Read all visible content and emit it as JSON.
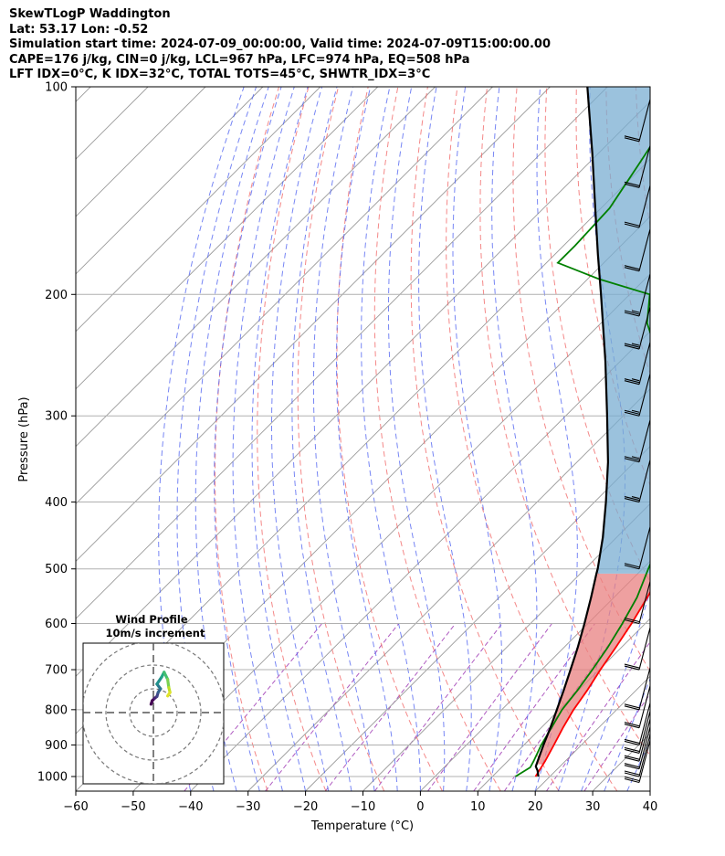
{
  "header": {
    "line1": "SkewTLogP Waddington",
    "line2": "Lat: 53.17   Lon: -0.52",
    "line3": "Simulation start time: 2024-07-09_00:00:00, Valid time: 2024-07-09T15:00:00.00",
    "line4": "CAPE=176 j/kg, CIN=0 j/kg, LCL=967 hPa, LFC=974 hPa, EQ=508 hPa",
    "line5": "LFT IDX=0°C, K IDX=32°C, TOTAL TOTS=45°C, SHWTR_IDX=3°C"
  },
  "chart_data": {
    "type": "skewt-logp",
    "xlabel": "Temperature (°C)",
    "ylabel": "Pressure (hPa)",
    "xlim": [
      -60,
      40
    ],
    "ylim": [
      1050,
      100
    ],
    "x_ticks": [
      "−60",
      "−50",
      "−40",
      "−30",
      "−20",
      "−10",
      "0",
      "10",
      "20",
      "30",
      "40"
    ],
    "x_tick_values": [
      -60,
      -50,
      -40,
      -30,
      -20,
      -10,
      0,
      10,
      20,
      30,
      40
    ],
    "y_ticks": [
      "100",
      "200",
      "300",
      "400",
      "500",
      "600",
      "700",
      "800",
      "900",
      "1000"
    ],
    "y_tick_values": [
      100,
      200,
      300,
      400,
      500,
      600,
      700,
      800,
      900,
      1000
    ],
    "grid": true,
    "colors": {
      "temperature": "#ff0000",
      "dewpoint": "#008000",
      "parcel": "#000000",
      "cape_fill": "#e88080",
      "cin_fill": "#7aaed2",
      "dry_adiabat": "#f06060",
      "moist_adiabat": "#4a5ef0",
      "mixing_ratio": "#9a30b0",
      "isotherm": "#9a9a9a"
    },
    "series": [
      {
        "name": "",
        "role": "temperature",
        "points": [
          {
            "p": 1000,
            "t": 17.5
          },
          {
            "p": 950,
            "t": 16.5
          },
          {
            "p": 900,
            "t": 15.2
          },
          {
            "p": 850,
            "t": 13.8
          },
          {
            "p": 800,
            "t": 12.5
          },
          {
            "p": 750,
            "t": 11.5
          },
          {
            "p": 700,
            "t": 10.2
          },
          {
            "p": 650,
            "t": 9.0
          },
          {
            "p": 600,
            "t": 7.6
          },
          {
            "p": 550,
            "t": 5.8
          },
          {
            "p": 500,
            "t": 3.6
          },
          {
            "p": 450,
            "t": 0.8
          },
          {
            "p": 400,
            "t": -2.8
          },
          {
            "p": 350,
            "t": -7.6
          },
          {
            "p": 300,
            "t": -13.6
          },
          {
            "p": 270,
            "t": -21.0
          },
          {
            "p": 250,
            "t": -27.0
          },
          {
            "p": 220,
            "t": -36.2
          },
          {
            "p": 210,
            "t": -38.0
          },
          {
            "p": 200,
            "t": -37.5
          },
          {
            "p": 190,
            "t": -35.5
          },
          {
            "p": 180,
            "t": -34.5
          },
          {
            "p": 170,
            "t": -35.5
          },
          {
            "p": 160,
            "t": -37.0
          },
          {
            "p": 150,
            "t": -40.0
          },
          {
            "p": 140,
            "t": -44.0
          },
          {
            "p": 130,
            "t": -49.0
          },
          {
            "p": 120,
            "t": -56.0
          },
          {
            "p": 110,
            "t": -60.5
          },
          {
            "p": 100,
            "t": -62.0
          }
        ]
      },
      {
        "name": "",
        "role": "dewpoint",
        "points": [
          {
            "p": 1000,
            "t": 14.0
          },
          {
            "p": 970,
            "t": 15.0
          },
          {
            "p": 950,
            "t": 14.5
          },
          {
            "p": 900,
            "t": 13.0
          },
          {
            "p": 850,
            "t": 11.8
          },
          {
            "p": 800,
            "t": 10.5
          },
          {
            "p": 750,
            "t": 9.8
          },
          {
            "p": 700,
            "t": 8.8
          },
          {
            "p": 650,
            "t": 7.6
          },
          {
            "p": 600,
            "t": 6.0
          },
          {
            "p": 550,
            "t": 4.0
          },
          {
            "p": 500,
            "t": 1.0
          },
          {
            "p": 450,
            "t": -2.2
          },
          {
            "p": 400,
            "t": -4.6
          },
          {
            "p": 350,
            "t": -7.8
          },
          {
            "p": 330,
            "t": -12.0
          },
          {
            "p": 310,
            "t": -17.5
          },
          {
            "p": 280,
            "t": -24.2
          },
          {
            "p": 260,
            "t": -29.5
          },
          {
            "p": 240,
            "t": -36.0
          },
          {
            "p": 220,
            "t": -42.0
          },
          {
            "p": 200,
            "t": -46.5
          },
          {
            "p": 190,
            "t": -58.0
          },
          {
            "p": 180,
            "t": -68.0
          },
          {
            "p": 170,
            "t": -68.0
          },
          {
            "p": 150,
            "t": -68.5
          },
          {
            "p": 130,
            "t": -71.0
          },
          {
            "p": 110,
            "t": -74.0
          },
          {
            "p": 100,
            "t": -77.0
          }
        ]
      },
      {
        "name": "",
        "role": "parcel",
        "points": [
          {
            "p": 1000,
            "t": 18.0
          },
          {
            "p": 980,
            "t": 16.8
          },
          {
            "p": 967,
            "t": 15.8
          },
          {
            "p": 950,
            "t": 15.2
          },
          {
            "p": 900,
            "t": 13.4
          },
          {
            "p": 850,
            "t": 11.6
          },
          {
            "p": 800,
            "t": 9.6
          },
          {
            "p": 750,
            "t": 7.4
          },
          {
            "p": 700,
            "t": 5.0
          },
          {
            "p": 650,
            "t": 2.4
          },
          {
            "p": 600,
            "t": -0.6
          },
          {
            "p": 550,
            "t": -4.0
          },
          {
            "p": 508,
            "t": -7.2
          },
          {
            "p": 500,
            "t": -7.8
          },
          {
            "p": 450,
            "t": -12.4
          },
          {
            "p": 400,
            "t": -18.0
          },
          {
            "p": 350,
            "t": -24.6
          },
          {
            "p": 300,
            "t": -32.8
          },
          {
            "p": 250,
            "t": -42.6
          },
          {
            "p": 200,
            "t": -55.0
          },
          {
            "p": 175,
            "t": -62.5
          },
          {
            "p": 150,
            "t": -71.0
          },
          {
            "p": 125,
            "t": -81.0
          },
          {
            "p": 100,
            "t": -93.5
          }
        ]
      }
    ],
    "wind_barbs": [
      {
        "p": 1020,
        "speed_kt": 20
      },
      {
        "p": 1000,
        "speed_kt": 20
      },
      {
        "p": 975,
        "speed_kt": 20
      },
      {
        "p": 950,
        "speed_kt": 20
      },
      {
        "p": 925,
        "speed_kt": 20
      },
      {
        "p": 900,
        "speed_kt": 20
      },
      {
        "p": 850,
        "speed_kt": 20
      },
      {
        "p": 800,
        "speed_kt": 20
      },
      {
        "p": 700,
        "speed_kt": 20
      },
      {
        "p": 600,
        "speed_kt": 20
      },
      {
        "p": 500,
        "speed_kt": 20
      },
      {
        "p": 400,
        "speed_kt": 25
      },
      {
        "p": 350,
        "speed_kt": 25
      },
      {
        "p": 300,
        "speed_kt": 25
      },
      {
        "p": 270,
        "speed_kt": 25
      },
      {
        "p": 240,
        "speed_kt": 25
      },
      {
        "p": 215,
        "speed_kt": 25
      },
      {
        "p": 185,
        "speed_kt": 20
      },
      {
        "p": 160,
        "speed_kt": 20
      },
      {
        "p": 140,
        "speed_kt": 20
      },
      {
        "p": 120,
        "speed_kt": 20
      }
    ],
    "hodograph": {
      "title_line1": "Wind Profile",
      "title_line2": "10m/s increment",
      "rings_ms": [
        10,
        20,
        30
      ],
      "trace": [
        {
          "u": -1.0,
          "v": 3.5,
          "c": "#440154"
        },
        {
          "u": -0.5,
          "v": 5.0,
          "c": "#440154"
        },
        {
          "u": 0.5,
          "v": 6.0,
          "c": "#482475"
        },
        {
          "u": 1.5,
          "v": 6.8,
          "c": "#414487"
        },
        {
          "u": 2.0,
          "v": 8.5,
          "c": "#355f8d"
        },
        {
          "u": 3.0,
          "v": 10.0,
          "c": "#2a788e"
        },
        {
          "u": 1.5,
          "v": 12.0,
          "c": "#21918c"
        },
        {
          "u": 3.5,
          "v": 15.0,
          "c": "#22a884"
        },
        {
          "u": 4.5,
          "v": 17.0,
          "c": "#44bf70"
        },
        {
          "u": 6.0,
          "v": 14.0,
          "c": "#7ad151"
        },
        {
          "u": 6.5,
          "v": 10.5,
          "c": "#bddf26"
        },
        {
          "u": 7.0,
          "v": 8.5,
          "c": "#e0e22b"
        },
        {
          "u": 6.0,
          "v": 7.0,
          "c": "#fde725"
        }
      ]
    }
  }
}
